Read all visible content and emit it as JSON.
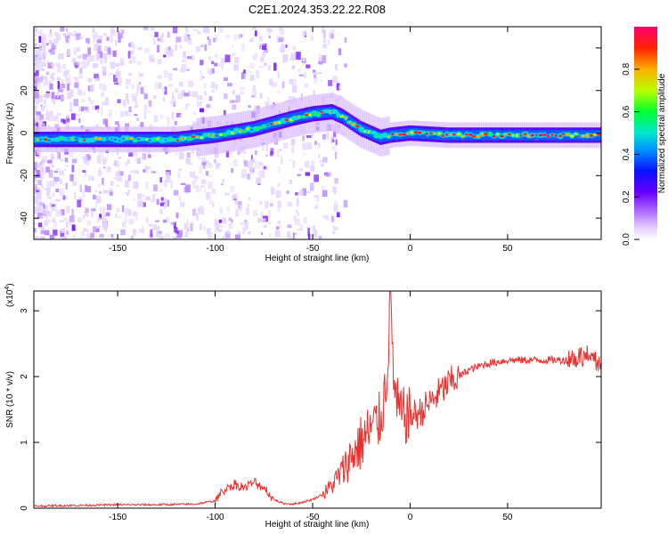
{
  "title": "C2E1.2024.353.22.22.R08",
  "colors": {
    "snr_line": "#e8302f",
    "axis": "#000000",
    "spectrogram_palette": [
      "#ffffff",
      "#e9d3ff",
      "#b57bff",
      "#7a00ff",
      "#2a00ff",
      "#0080ff",
      "#00e0e0",
      "#00ff40",
      "#c8ff00",
      "#ffb000",
      "#ff2000",
      "#ff0060"
    ]
  },
  "chart_data": [
    {
      "type": "heatmap",
      "title": "",
      "xlabel": "Height of straight line (km)",
      "ylabel": "Frequency (Hz)",
      "xlim": [
        -193,
        98
      ],
      "ylim": [
        -50,
        50
      ],
      "xticks": [
        -150,
        -100,
        -50,
        0,
        50
      ],
      "yticks": [
        -40,
        -20,
        0,
        20,
        40
      ],
      "grid": false,
      "colorbar": {
        "label": "Normalized spectral amplitude",
        "range": [
          0.0,
          1.0
        ],
        "ticks": [
          "0.0",
          "0.2",
          "0.4",
          "0.6",
          "0.8"
        ]
      },
      "ridge": {
        "description_points_x": [
          -193,
          -120,
          -100,
          -80,
          -60,
          -50,
          -40,
          -35,
          -25,
          -15,
          -10,
          0,
          20,
          50,
          95
        ],
        "description_points_y": [
          -3,
          -3,
          -1,
          2,
          7,
          9,
          10,
          8,
          2,
          -2,
          -1,
          0,
          -1,
          -1,
          -1
        ]
      }
    },
    {
      "type": "line",
      "title": "",
      "xlabel": "Height of straight line (km)",
      "ylabel": "SNR (10 * v/v)",
      "y_multiplier_label": "(x10",
      "y_multiplier_exp": "4",
      "xlim": [
        -193,
        98
      ],
      "ylim": [
        0,
        3.3
      ],
      "xticks": [
        -150,
        -100,
        -50,
        0,
        50
      ],
      "yticks": [
        0,
        1,
        2,
        3
      ],
      "grid": false,
      "series": [
        {
          "x": [
            -193,
            -170,
            -150,
            -130,
            -110,
            -100,
            -95,
            -90,
            -85,
            -80,
            -75,
            -70,
            -65,
            -60,
            -55,
            -50,
            -45,
            -40,
            -35,
            -30,
            -25,
            -20,
            -15,
            -12,
            -10,
            -8,
            -5,
            0,
            5,
            10,
            15,
            20,
            25,
            30,
            40,
            50,
            60,
            70,
            80,
            85,
            90,
            95,
            98
          ],
          "y": [
            0.02,
            0.03,
            0.04,
            0.04,
            0.05,
            0.1,
            0.28,
            0.35,
            0.3,
            0.38,
            0.3,
            0.12,
            0.06,
            0.05,
            0.08,
            0.12,
            0.2,
            0.35,
            0.55,
            0.8,
            1.0,
            1.2,
            1.35,
            2.0,
            3.2,
            1.7,
            1.4,
            1.4,
            1.45,
            1.6,
            1.75,
            1.9,
            2.0,
            2.1,
            2.2,
            2.25,
            2.25,
            2.25,
            2.25,
            2.3,
            2.3,
            2.25,
            2.2
          ]
        }
      ]
    }
  ]
}
